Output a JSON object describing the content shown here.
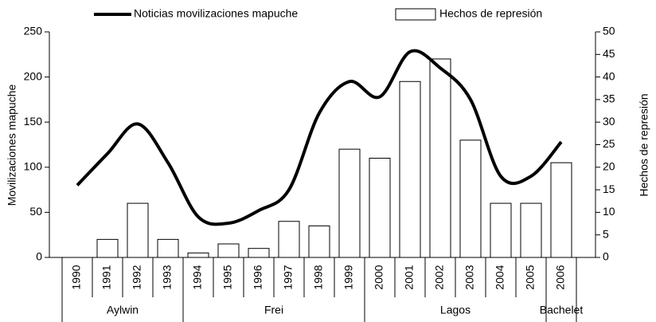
{
  "chart_data": {
    "type": "bar-line",
    "categories": [
      "1990",
      "1991",
      "1992",
      "1993",
      "1994",
      "1995",
      "1996",
      "1997",
      "1998",
      "1999",
      "2000",
      "2001",
      "2002",
      "2003",
      "2004",
      "2005",
      "2006"
    ],
    "series": [
      {
        "name": "Noticias movilizaciones mapuche",
        "type": "line",
        "color": "#000000",
        "values": [
          80,
          115,
          148,
          105,
          45,
          38,
          52,
          75,
          160,
          195,
          178,
          228,
          210,
          175,
          90,
          90,
          128
        ]
      },
      {
        "name": "Hechos de represión",
        "type": "bar",
        "axis": "y2",
        "color": "#ffffff",
        "values": [
          null,
          4,
          12,
          4,
          1,
          3,
          2,
          8,
          7,
          24,
          22,
          39,
          44,
          26,
          12,
          12,
          21
        ]
      }
    ],
    "ylabel": "Movilizaciones mapuche",
    "y2label": "Hechos de represión",
    "ylim": [
      0,
      250
    ],
    "yticks": [
      0,
      50,
      100,
      150,
      200,
      250
    ],
    "y2lim": [
      0,
      50
    ],
    "y2ticks": [
      0,
      5,
      10,
      15,
      20,
      25,
      30,
      35,
      40,
      45,
      50
    ],
    "periods": [
      {
        "name": "Aylwin",
        "count": 4
      },
      {
        "name": "Frei",
        "count": 6
      },
      {
        "name": "Lagos",
        "count": 6
      },
      {
        "name": "Bachelet",
        "count": 1
      }
    ]
  }
}
